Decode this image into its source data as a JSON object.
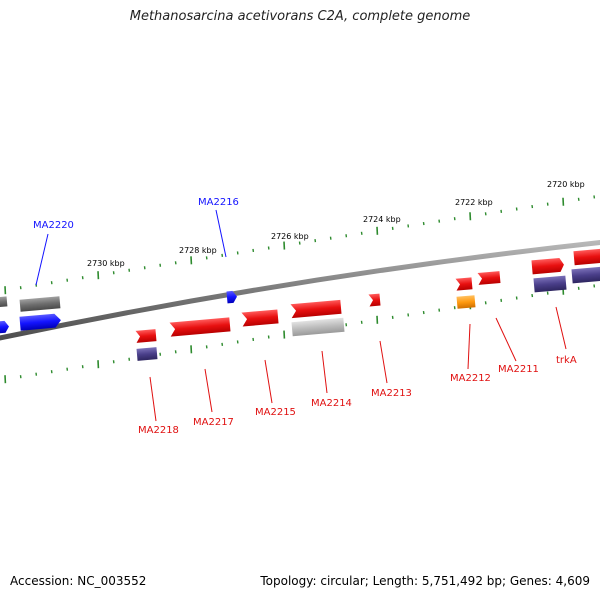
{
  "title": "Methanosarcina acetivorans C2A, complete genome",
  "footer": {
    "accession": "Accession: NC_003552",
    "summary": "Topology: circular; Length: 5,751,492 bp; Genes: 4,609"
  },
  "colors": {
    "backbone": "#8c8c8c",
    "tick": "#2e8b2e",
    "red": "#e01010",
    "blue": "#1414ff",
    "grey": "#6e6e6e",
    "lightgrey": "#bcbcbc",
    "purple": "#4a3f8a",
    "orange": "#ff9a10"
  },
  "scale_labels": [
    "2720 kbp",
    "2722 kbp",
    "2724 kbp",
    "2726 kbp",
    "2728 kbp",
    "2730 kbp"
  ],
  "gene_labels": {
    "MA2220": "MA2220",
    "MA2216": "MA2216",
    "MA2218": "MA2218",
    "MA2217": "MA2217",
    "MA2215": "MA2215",
    "MA2214": "MA2214",
    "MA2213": "MA2213",
    "MA2212": "MA2212",
    "MA2211": "MA2211",
    "trkA": "trkA"
  }
}
